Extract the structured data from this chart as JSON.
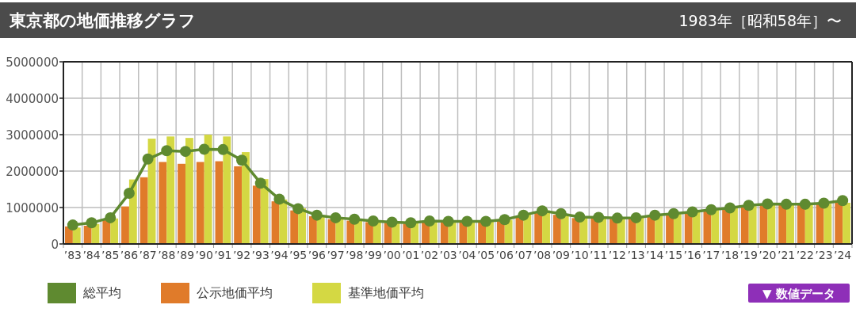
{
  "chart_data": {
    "type": "bar",
    "title": "東京都の地価推移グラフ",
    "subtitle": "1983年［昭和58年］〜",
    "categories": [
      "’83",
      "’84",
      "’85",
      "’86",
      "’87",
      "’88",
      "’89",
      "’90",
      "’91",
      "’92",
      "’93",
      "’94",
      "’95",
      "’96",
      "’97",
      "’98",
      "’99",
      "’00",
      "’01",
      "’02",
      "’03",
      "’04",
      "’05",
      "’06",
      "’07",
      "’08",
      "’09",
      "’10",
      "’11",
      "’12",
      "’13",
      "’14",
      "’15",
      "’16",
      "’17",
      "’18",
      "’19",
      "’20",
      "’21",
      "’22",
      "’23",
      "’24"
    ],
    "series": [
      {
        "name": "総平均",
        "type": "line",
        "color": "#5f8a30",
        "values": [
          520000,
          580000,
          720000,
          1390000,
          2330000,
          2560000,
          2540000,
          2600000,
          2590000,
          2300000,
          1670000,
          1230000,
          970000,
          790000,
          720000,
          680000,
          630000,
          600000,
          580000,
          630000,
          620000,
          620000,
          620000,
          670000,
          790000,
          910000,
          830000,
          740000,
          730000,
          710000,
          720000,
          790000,
          830000,
          880000,
          940000,
          990000,
          1060000,
          1100000,
          1090000,
          1090000,
          1120000,
          1190000
        ]
      },
      {
        "name": "公示地価平均",
        "color": "#e07b2a",
        "values": [
          480000,
          500000,
          650000,
          1030000,
          1830000,
          2250000,
          2200000,
          2250000,
          2270000,
          2130000,
          1600000,
          1170000,
          920000,
          760000,
          680000,
          640000,
          600000,
          580000,
          560000,
          600000,
          590000,
          590000,
          590000,
          630000,
          750000,
          880000,
          800000,
          710000,
          700000,
          690000,
          700000,
          760000,
          800000,
          850000,
          910000,
          970000,
          1040000,
          1080000,
          1070000,
          1070000,
          1110000,
          1190000
        ]
      },
      {
        "name": "基準地価平均",
        "color": "#d4d843",
        "values": [
          450000,
          550000,
          700000,
          1770000,
          2890000,
          2950000,
          2910000,
          3000000,
          2950000,
          2520000,
          1780000,
          1220000,
          980000,
          780000,
          720000,
          680000,
          630000,
          600000,
          580000,
          630000,
          620000,
          620000,
          620000,
          660000,
          800000,
          920000,
          820000,
          740000,
          730000,
          710000,
          720000,
          780000,
          820000,
          870000,
          930000,
          980000,
          1040000,
          1080000,
          1080000,
          1080000,
          1100000,
          1130000
        ]
      }
    ],
    "ylim": [
      0,
      5000000
    ],
    "yticks": [
      0,
      1000000,
      2000000,
      3000000,
      4000000,
      5000000
    ],
    "grid": true,
    "legend": "bottom left",
    "marker": "circle",
    "annotations": [
      "▼ 数値データ"
    ]
  }
}
